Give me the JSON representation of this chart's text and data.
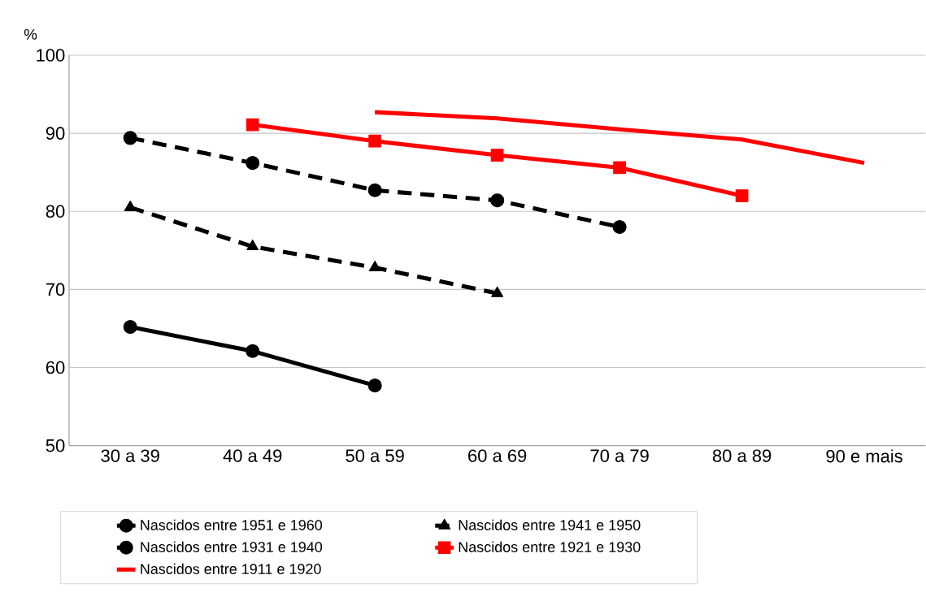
{
  "chart_data": {
    "type": "line",
    "ylabel": "%",
    "categories": [
      "30 a 39",
      "40 a 49",
      "50 a 59",
      "60 a 69",
      "70 a 79",
      "80 a 89",
      "90 e mais"
    ],
    "ylim": [
      50,
      100
    ],
    "yticks": [
      50,
      60,
      70,
      80,
      90,
      100
    ],
    "grid": "y",
    "legend": "bottom",
    "series": [
      {
        "name": "Nascidos entre 1951 e 1960",
        "color": "#000000",
        "marker": "circle",
        "line_style": "solid",
        "values": [
          65.2,
          62.1,
          57.7,
          null,
          null,
          null,
          null
        ]
      },
      {
        "name": "Nascidos entre 1941 e 1950",
        "color": "#000000",
        "marker": "triangle",
        "line_style": "dashed",
        "values": [
          80.5,
          75.5,
          72.8,
          69.5,
          null,
          null,
          null
        ]
      },
      {
        "name": "Nascidos entre 1931 e 1940",
        "color": "#000000",
        "marker": "circle",
        "line_style": "dashed",
        "values": [
          89.4,
          86.2,
          82.7,
          81.4,
          78.0,
          null,
          null
        ]
      },
      {
        "name": "Nascidos entre 1921 e 1930",
        "color": "#ff0000",
        "marker": "square",
        "line_style": "solid",
        "values": [
          null,
          91.1,
          89.0,
          87.2,
          85.6,
          82.0,
          null
        ]
      },
      {
        "name": "Nascidos entre 1911 e 1920",
        "color": "#ff0000",
        "marker": "none",
        "line_style": "solid",
        "values": [
          null,
          null,
          92.7,
          91.9,
          90.5,
          89.2,
          86.2
        ]
      }
    ]
  }
}
